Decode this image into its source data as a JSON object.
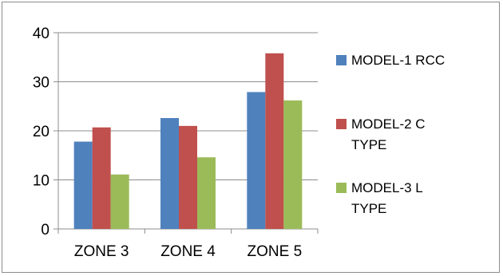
{
  "chart_data": {
    "type": "bar",
    "categories": [
      "ZONE 3",
      "ZONE 4",
      "ZONE 5"
    ],
    "series": [
      {
        "name": "MODEL-1  RCC",
        "values": [
          17.8,
          22.6,
          27.9
        ]
      },
      {
        "name": "MODEL-2 C TYPE",
        "values": [
          20.7,
          21.0,
          35.8
        ]
      },
      {
        "name": "MODEL-3  L TYPE",
        "values": [
          11.1,
          14.6,
          26.2
        ]
      }
    ],
    "title": "",
    "xlabel": "",
    "ylabel": "",
    "ylim": [
      0,
      40
    ],
    "yticks": [
      "0",
      "10",
      "20",
      "30",
      "40"
    ],
    "grid": true,
    "legend": {
      "position": "right",
      "entries": [
        {
          "lines": [
            "MODEL-1  RCC"
          ]
        },
        {
          "lines": [
            "MODEL-2 C",
            "TYPE"
          ]
        },
        {
          "lines": [
            "MODEL-3  L",
            "TYPE"
          ]
        }
      ]
    },
    "colors": [
      "#4f81bd",
      "#c0504d",
      "#9bbb59"
    ]
  }
}
